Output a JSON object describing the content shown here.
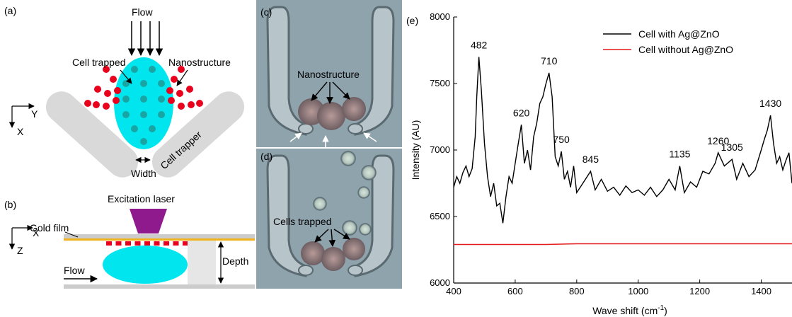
{
  "panels": {
    "a": {
      "label": "(a)",
      "flow": "Flow",
      "cell_trapped": "Cell trapped",
      "nanostructure": "Nanostructure",
      "cell_trapper": "Cell trapper",
      "width": "Width",
      "axis_x": "X",
      "axis_y": "Y"
    },
    "b": {
      "label": "(b)",
      "excitation_laser": "Excitation laser",
      "gold_film": "Gold film",
      "flow": "Flow",
      "depth": "Depth",
      "axis_x": "X",
      "axis_z": "Z"
    },
    "c": {
      "label": "(c)",
      "nanostructure": "Nanostructure"
    },
    "d": {
      "label": "(d)",
      "cells_trapped": "Cells trapped"
    },
    "e": {
      "label": "(e)"
    }
  },
  "colors": {
    "cell": "#00e5ee",
    "cell_dots": "#1aa5a5",
    "nanoparticle": "#e8001c",
    "trapper": "#d9d9d9",
    "laser": "#8e1a8e",
    "gold_film": "#f2b21c",
    "micrograph_bg": "#8fa3ad",
    "series_with": "#000000",
    "series_without": "#e41a1c"
  },
  "chart_data": {
    "type": "line",
    "xlabel": "Wave shift (cm",
    "xlabel_sup": "-1",
    "xlabel_end": ")",
    "ylabel": "Intensity (AU)",
    "xlim": [
      400,
      1500
    ],
    "ylim": [
      6000,
      8000
    ],
    "xticks": [
      400,
      600,
      800,
      1000,
      1200,
      1400
    ],
    "yticks": [
      6000,
      6500,
      7000,
      7500,
      8000
    ],
    "legend_position": "top-right",
    "peak_labels": [
      {
        "x": 482,
        "y": 7700,
        "text": "482"
      },
      {
        "x": 620,
        "y": 7190,
        "text": "620"
      },
      {
        "x": 710,
        "y": 7580,
        "text": "710"
      },
      {
        "x": 750,
        "y": 6990,
        "text": "750"
      },
      {
        "x": 845,
        "y": 6840,
        "text": "845"
      },
      {
        "x": 1135,
        "y": 6880,
        "text": "1135"
      },
      {
        "x": 1260,
        "y": 6980,
        "text": "1260"
      },
      {
        "x": 1305,
        "y": 6930,
        "text": "1305"
      },
      {
        "x": 1430,
        "y": 7260,
        "text": "1430"
      }
    ],
    "series": [
      {
        "name": "Cell with Ag@ZnO",
        "color": "#000000",
        "x": [
          400,
          410,
          420,
          430,
          440,
          450,
          460,
          470,
          475,
          482,
          490,
          500,
          510,
          520,
          530,
          540,
          550,
          560,
          570,
          580,
          590,
          600,
          610,
          620,
          630,
          640,
          650,
          660,
          670,
          680,
          690,
          700,
          710,
          720,
          730,
          740,
          750,
          760,
          770,
          780,
          790,
          800,
          820,
          845,
          860,
          880,
          900,
          920,
          940,
          960,
          980,
          1000,
          1020,
          1040,
          1060,
          1080,
          1100,
          1120,
          1135,
          1150,
          1170,
          1190,
          1210,
          1230,
          1250,
          1260,
          1280,
          1305,
          1320,
          1340,
          1360,
          1380,
          1400,
          1410,
          1420,
          1430,
          1440,
          1450,
          1460,
          1470,
          1480,
          1490,
          1500
        ],
        "y": [
          6720,
          6800,
          6750,
          6830,
          6880,
          6800,
          6860,
          7100,
          7400,
          7700,
          7450,
          7050,
          6800,
          6650,
          6750,
          6580,
          6600,
          6450,
          6650,
          6800,
          6750,
          6900,
          7050,
          7190,
          6900,
          7000,
          6850,
          7100,
          7200,
          7350,
          7400,
          7500,
          7580,
          7400,
          6950,
          6880,
          6990,
          6780,
          6840,
          6720,
          6880,
          6680,
          6750,
          6840,
          6700,
          6780,
          6690,
          6720,
          6660,
          6730,
          6680,
          6700,
          6660,
          6720,
          6650,
          6700,
          6780,
          6700,
          6880,
          6680,
          6760,
          6720,
          6840,
          6820,
          6900,
          6980,
          6880,
          6930,
          6780,
          6900,
          6800,
          6850,
          7000,
          7080,
          7150,
          7260,
          7050,
          6900,
          6950,
          6850,
          6920,
          6980,
          6750
        ]
      },
      {
        "name": "Cell without Ag@ZnO",
        "color": "#e41a1c",
        "x": [
          400,
          500,
          600,
          700,
          800,
          900,
          1000,
          1100,
          1200,
          1300,
          1400,
          1500
        ],
        "y": [
          6290,
          6290,
          6290,
          6290,
          6295,
          6295,
          6295,
          6295,
          6295,
          6295,
          6295,
          6295
        ]
      }
    ]
  }
}
